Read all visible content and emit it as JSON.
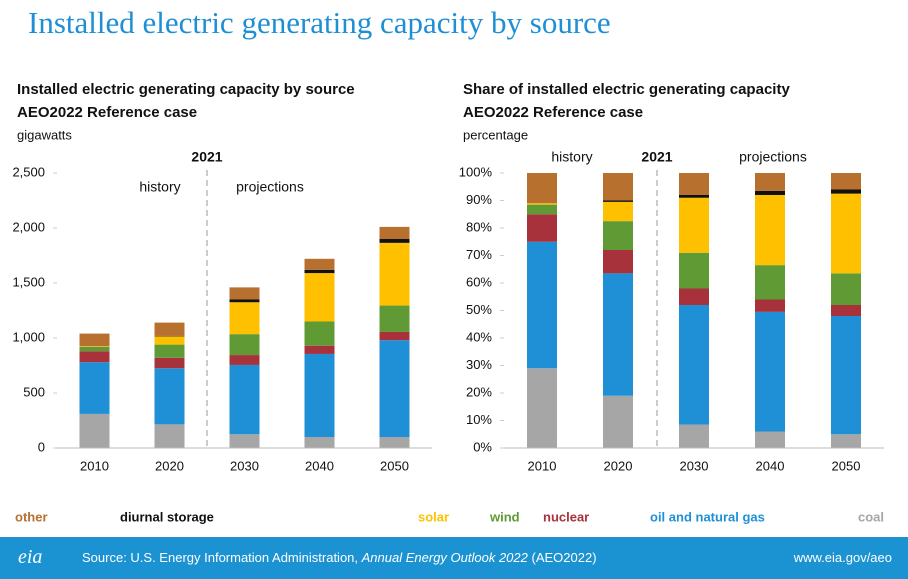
{
  "header": {
    "title": "Installed electric generating capacity by source"
  },
  "legend": [
    {
      "name": "coal",
      "color": "#a6a6a6"
    },
    {
      "name": "oil and natural gas",
      "color": "#1f8fd6"
    },
    {
      "name": "nuclear",
      "color": "#a8323c"
    },
    {
      "name": "wind",
      "color": "#5f9a35"
    },
    {
      "name": "solar",
      "color": "#ffc000"
    },
    {
      "name": "diurnal storage",
      "color": "#111111"
    },
    {
      "name": "other",
      "color": "#b8702e"
    }
  ],
  "chart_data": [
    {
      "type": "stacked_bar",
      "title": "Installed electric generating capacity by source",
      "subtitle": "AEO2022 Reference case",
      "unit_label": "gigawatts",
      "divider_label": "2021",
      "history_label": "history",
      "projections_label": "projections",
      "categories": [
        "2010",
        "2020",
        "2030",
        "2040",
        "2050"
      ],
      "series": [
        {
          "values": [
            310,
            215,
            125,
            100,
            100
          ]
        },
        {
          "values": [
            470,
            510,
            630,
            755,
            880
          ]
        },
        {
          "values": [
            100,
            95,
            90,
            75,
            75
          ]
        },
        {
          "values": [
            40,
            120,
            190,
            220,
            240
          ]
        },
        {
          "values": [
            5,
            75,
            290,
            440,
            570
          ]
        },
        {
          "values": [
            0,
            5,
            25,
            30,
            35
          ]
        },
        {
          "values": [
            115,
            120,
            110,
            100,
            110
          ]
        }
      ],
      "ylim": [
        0,
        2500
      ],
      "yticks": [
        0,
        500,
        {
          "value": 1000,
          "label": "1,000"
        },
        {
          "value": 1500,
          "label": "1,500"
        },
        {
          "value": 2000,
          "label": "2,000"
        },
        {
          "value": 2500,
          "label": "2,500"
        }
      ]
    },
    {
      "type": "stacked_bar",
      "title": "Share of installed electric generating capacity",
      "subtitle": "AEO2022 Reference case",
      "unit_label": "percentage",
      "divider_label": "2021",
      "history_label": "history",
      "projections_label": "projections",
      "categories": [
        "2010",
        "2020",
        "2030",
        "2040",
        "2050"
      ],
      "series": [
        {
          "values": [
            29,
            19,
            8.5,
            6,
            5
          ]
        },
        {
          "values": [
            46,
            44.5,
            43.5,
            43.5,
            43
          ]
        },
        {
          "values": [
            10,
            8.5,
            6,
            4.5,
            4
          ]
        },
        {
          "values": [
            3.5,
            10.5,
            13,
            12.5,
            11.5
          ]
        },
        {
          "values": [
            0.5,
            7,
            20,
            25.5,
            29
          ]
        },
        {
          "values": [
            0,
            0.5,
            1,
            1.5,
            1.5
          ]
        },
        {
          "values": [
            11,
            10,
            8,
            6.5,
            6
          ]
        }
      ],
      "ylim": [
        0,
        100
      ],
      "yticks": [
        {
          "value": 0,
          "label": "0%"
        },
        {
          "value": 10,
          "label": "10%"
        },
        {
          "value": 20,
          "label": "20%"
        },
        {
          "value": 30,
          "label": "30%"
        },
        {
          "value": 40,
          "label": "40%"
        },
        {
          "value": 50,
          "label": "50%"
        },
        {
          "value": 60,
          "label": "60%"
        },
        {
          "value": 70,
          "label": "70%"
        },
        {
          "value": 80,
          "label": "80%"
        },
        {
          "value": 90,
          "label": "90%"
        },
        {
          "value": 100,
          "label": "100%"
        }
      ]
    }
  ],
  "footer": {
    "logo": "eia",
    "source_prefix": "Source: U.S. Energy Information Administration, ",
    "source_title": "Annual Energy Outlook 2022",
    "source_suffix": " (AEO2022)",
    "url": "www.eia.gov/aeo"
  }
}
